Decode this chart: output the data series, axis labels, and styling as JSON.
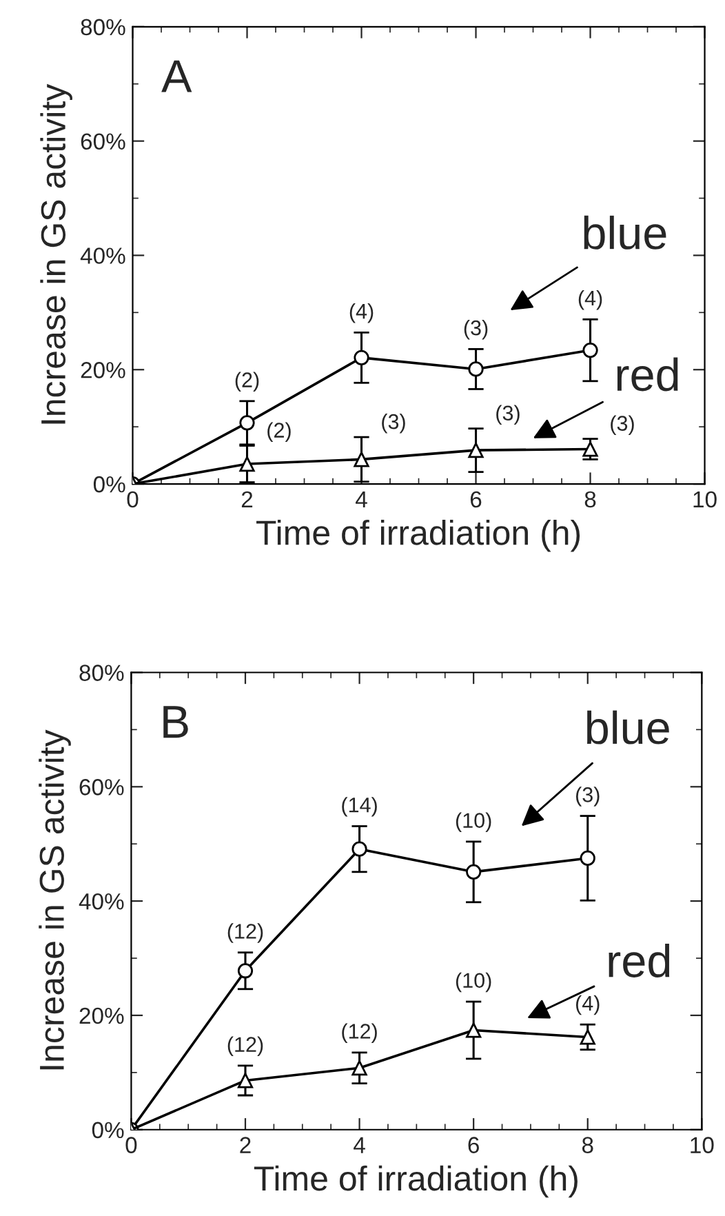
{
  "chart_data": [
    {
      "type": "line",
      "xlabel": "Time of irradiation (h)",
      "ylabel": "Increase in GS activity",
      "x": [
        0,
        2,
        4,
        6,
        8
      ],
      "xlim": [
        0,
        10
      ],
      "xticks": [
        0,
        2,
        4,
        6,
        8,
        10
      ],
      "ylim": [
        0,
        80
      ],
      "yticks": [
        {
          "value": 0,
          "label": "0%"
        },
        {
          "value": 20,
          "label": "20%"
        },
        {
          "value": 40,
          "label": "40%"
        },
        {
          "value": 60,
          "label": "60%"
        },
        {
          "value": 80,
          "label": "80%"
        }
      ],
      "grid": false,
      "legend": false,
      "line_style": "solid",
      "series": [
        {
          "color": "#000000",
          "marker": "circle",
          "values": [
            0,
            10.7,
            22.1,
            20.1,
            23.4
          ],
          "errors": [
            null,
            3.8,
            4.4,
            3.5,
            5.4
          ]
        },
        {
          "color": "#000000",
          "marker": "triangle",
          "values": [
            0,
            3.5,
            4.3,
            5.9,
            6.1
          ],
          "errors": [
            null,
            3.2,
            3.9,
            3.8,
            1.8
          ]
        }
      ],
      "annotations": [
        "A",
        "blue",
        "red",
        {
          "text": "(2)",
          "x": 2,
          "y": 10.7
        },
        {
          "text": "(4)",
          "x": 4,
          "y": 22.1
        },
        {
          "text": "(3)",
          "x": 6,
          "y": 20.1
        },
        {
          "text": "(4)",
          "x": 8,
          "y": 23.4
        },
        {
          "text": "(2)",
          "x": 2,
          "y": 3.5
        },
        {
          "text": "(3)",
          "x": 4,
          "y": 4.3
        },
        {
          "text": "(3)",
          "x": 6,
          "y": 5.9
        },
        {
          "text": "(3)",
          "x": 8,
          "y": 6.1
        }
      ]
    },
    {
      "type": "line",
      "xlabel": "Time of irradiation (h)",
      "ylabel": "Increase in GS activity",
      "x": [
        0,
        2,
        4,
        6,
        8
      ],
      "xlim": [
        0,
        10
      ],
      "xticks": [
        0,
        2,
        4,
        6,
        8,
        10
      ],
      "ylim": [
        0,
        80
      ],
      "yticks": [
        {
          "value": 0,
          "label": "0%"
        },
        {
          "value": 20,
          "label": "20%"
        },
        {
          "value": 40,
          "label": "40%"
        },
        {
          "value": 60,
          "label": "60%"
        },
        {
          "value": 80,
          "label": "80%"
        }
      ],
      "grid": false,
      "legend": false,
      "line_style": "solid",
      "series": [
        {
          "color": "#000000",
          "marker": "circle",
          "values": [
            0,
            27.8,
            49.1,
            45.1,
            47.5
          ],
          "errors": [
            null,
            3.2,
            4.0,
            5.3,
            7.4
          ]
        },
        {
          "color": "#000000",
          "marker": "triangle",
          "values": [
            0,
            8.6,
            10.8,
            17.4,
            16.2
          ],
          "errors": [
            null,
            2.6,
            2.7,
            5.0,
            2.2
          ]
        }
      ],
      "annotations": [
        "B",
        "blue",
        "red",
        {
          "text": "(12)",
          "x": 2,
          "y": 27.8
        },
        {
          "text": "(14)",
          "x": 4,
          "y": 49.1
        },
        {
          "text": "(10)",
          "x": 6,
          "y": 45.1
        },
        {
          "text": "(3)",
          "x": 8,
          "y": 47.5
        },
        {
          "text": "(12)",
          "x": 2,
          "y": 8.6
        },
        {
          "text": "(12)",
          "x": 4,
          "y": 10.8
        },
        {
          "text": "(10)",
          "x": 6,
          "y": 17.4
        },
        {
          "text": "(4)",
          "x": 8,
          "y": 16.2
        }
      ]
    }
  ]
}
